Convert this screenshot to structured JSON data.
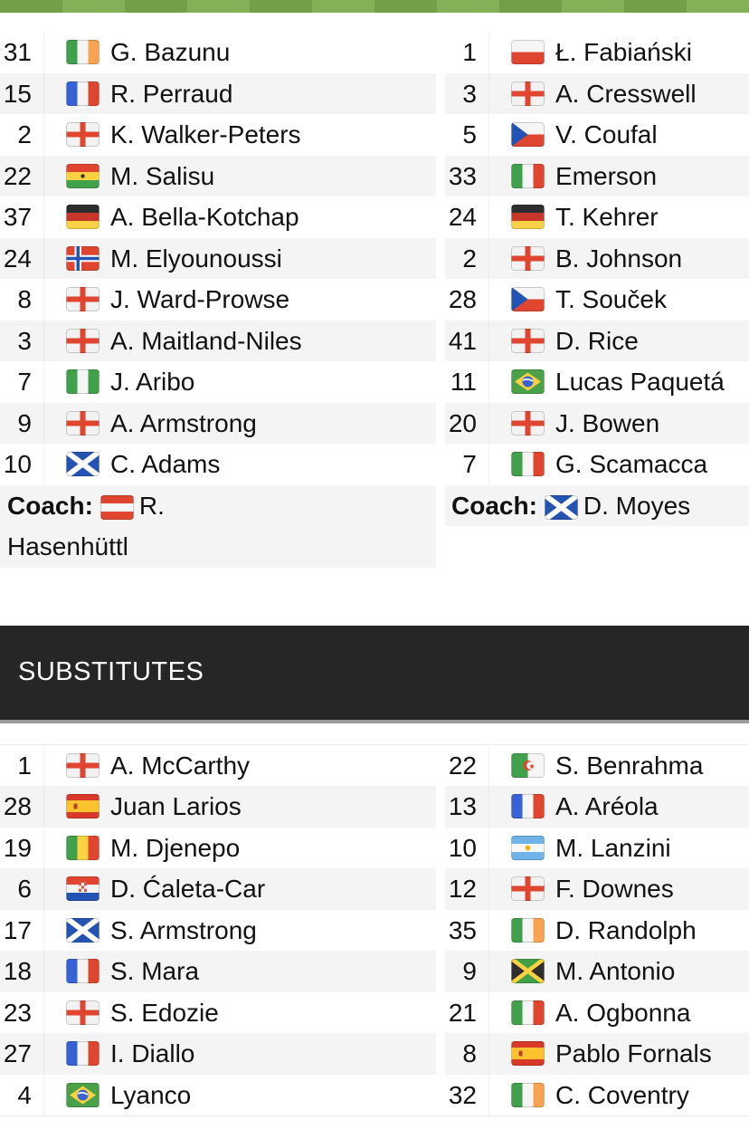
{
  "colors": {
    "accent_green_dark": "#729f47",
    "accent_green_light": "#84b058",
    "row_alt_bg": "#f4f4f5",
    "subs_header_bg": "#262626",
    "subs_header_text": "#ffffff",
    "separator_gray": "#9a9a9a"
  },
  "starting_xi": {
    "home": {
      "players": [
        {
          "number": "31",
          "flag": "ireland",
          "name": "G. Bazunu"
        },
        {
          "number": "15",
          "flag": "france",
          "name": "R. Perraud"
        },
        {
          "number": "2",
          "flag": "england",
          "name": "K. Walker-Peters"
        },
        {
          "number": "22",
          "flag": "ghana",
          "name": "M. Salisu"
        },
        {
          "number": "37",
          "flag": "germany",
          "name": "A. Bella-Kotchap"
        },
        {
          "number": "24",
          "flag": "norway",
          "name": "M. Elyounoussi"
        },
        {
          "number": "8",
          "flag": "england",
          "name": "J. Ward-Prowse"
        },
        {
          "number": "3",
          "flag": "england",
          "name": "A. Maitland-Niles"
        },
        {
          "number": "7",
          "flag": "nigeria",
          "name": "J. Aribo"
        },
        {
          "number": "9",
          "flag": "england",
          "name": "A. Armstrong"
        },
        {
          "number": "10",
          "flag": "scotland",
          "name": "C. Adams"
        }
      ],
      "coach": {
        "label": "Coach:",
        "flag": "austria",
        "name": "R. Hasenhüttl"
      }
    },
    "away": {
      "players": [
        {
          "number": "1",
          "flag": "poland",
          "name": "Ł. Fabiański"
        },
        {
          "number": "3",
          "flag": "england",
          "name": "A. Cresswell"
        },
        {
          "number": "5",
          "flag": "czechia",
          "name": "V. Coufal"
        },
        {
          "number": "33",
          "flag": "italy",
          "name": "Emerson"
        },
        {
          "number": "24",
          "flag": "germany",
          "name": "T. Kehrer"
        },
        {
          "number": "2",
          "flag": "england",
          "name": "B. Johnson"
        },
        {
          "number": "28",
          "flag": "czechia",
          "name": "T. Souček"
        },
        {
          "number": "41",
          "flag": "england",
          "name": "D. Rice"
        },
        {
          "number": "11",
          "flag": "brazil",
          "name": "Lucas Paquetá"
        },
        {
          "number": "20",
          "flag": "england",
          "name": "J. Bowen"
        },
        {
          "number": "7",
          "flag": "italy",
          "name": "G. Scamacca"
        }
      ],
      "coach": {
        "label": "Coach:",
        "flag": "scotland",
        "name": "D. Moyes"
      }
    }
  },
  "substitutes": {
    "header": "SUBSTITUTES",
    "home": [
      {
        "number": "1",
        "flag": "england",
        "name": "A. McCarthy"
      },
      {
        "number": "28",
        "flag": "spain",
        "name": "Juan Larios"
      },
      {
        "number": "19",
        "flag": "mali",
        "name": "M. Djenepo"
      },
      {
        "number": "6",
        "flag": "croatia",
        "name": "D. Ćaleta-Car"
      },
      {
        "number": "17",
        "flag": "scotland",
        "name": "S. Armstrong"
      },
      {
        "number": "18",
        "flag": "france",
        "name": "S. Mara"
      },
      {
        "number": "23",
        "flag": "england",
        "name": "S. Edozie"
      },
      {
        "number": "27",
        "flag": "france",
        "name": "I. Diallo"
      },
      {
        "number": "4",
        "flag": "brazil",
        "name": "Lyanco"
      }
    ],
    "away": [
      {
        "number": "22",
        "flag": "algeria",
        "name": "S. Benrahma"
      },
      {
        "number": "13",
        "flag": "france",
        "name": "A. Aréola"
      },
      {
        "number": "10",
        "flag": "argentina",
        "name": "M. Lanzini"
      },
      {
        "number": "12",
        "flag": "england",
        "name": "F. Downes"
      },
      {
        "number": "35",
        "flag": "ireland",
        "name": "D. Randolph"
      },
      {
        "number": "9",
        "flag": "jamaica",
        "name": "M. Antonio"
      },
      {
        "number": "21",
        "flag": "italy",
        "name": "A. Ogbonna"
      },
      {
        "number": "8",
        "flag": "spain",
        "name": "Pablo Fornals"
      },
      {
        "number": "32",
        "flag": "ireland",
        "name": "C. Coventry"
      }
    ]
  }
}
